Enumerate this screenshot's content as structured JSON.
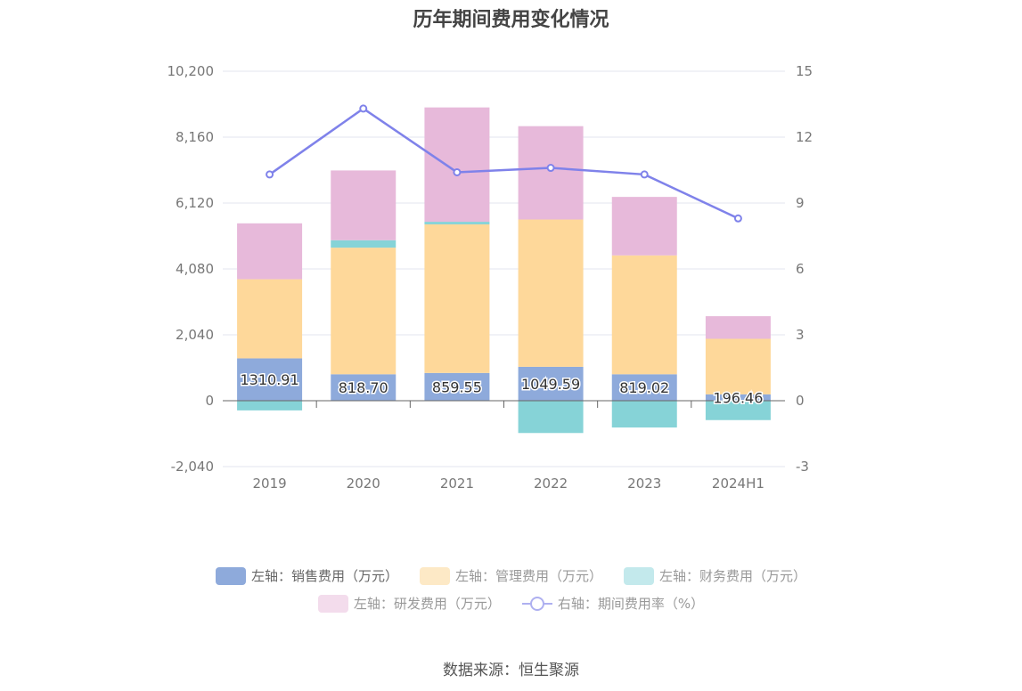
{
  "chart_data": {
    "type": "bar",
    "title": "历年期间费用变化情况",
    "categories": [
      "2019",
      "2020",
      "2021",
      "2022",
      "2023",
      "2024H1"
    ],
    "left_axis": {
      "min": -2040,
      "max": 10200,
      "ticks": [
        "-2,040",
        "0",
        "2,040",
        "4,080",
        "6,120",
        "8,160",
        "10,200"
      ]
    },
    "right_axis": {
      "min": -3,
      "max": 15,
      "ticks": [
        "-3",
        "0",
        "3",
        "6",
        "9",
        "12",
        "15"
      ]
    },
    "series": [
      {
        "name": "左轴：销售费用（万元）",
        "color": "#8eaadb",
        "values": [
          1310.91,
          818.7,
          859.55,
          1049.59,
          819.02,
          196.46
        ],
        "labels": [
          "1310.91",
          "818.70",
          "859.55",
          "1049.59",
          "819.02",
          "196.46"
        ]
      },
      {
        "name": "左轴：管理费用（万元）",
        "color": "#fed89a",
        "values": [
          2450,
          3920,
          4600,
          4560,
          3680,
          1720
        ]
      },
      {
        "name": "左轴：财务费用（万元）",
        "color": "#86d3d7",
        "values": [
          -300,
          230,
          80,
          -1000,
          -830,
          -600
        ]
      },
      {
        "name": "左轴：研发费用（万元）",
        "color": "#e7b9da",
        "values": [
          1730,
          2160,
          3540,
          2890,
          1810,
          700
        ]
      }
    ],
    "line_series": {
      "name": "右轴：期间费用率（%）",
      "color": "#7f82ea",
      "values": [
        10.3,
        13.3,
        10.4,
        10.6,
        10.3,
        8.3
      ]
    },
    "legend_position": "bottom",
    "grid": true
  },
  "source": "数据来源：恒生聚源"
}
